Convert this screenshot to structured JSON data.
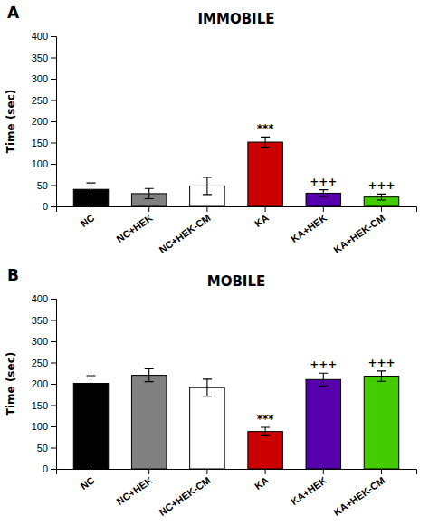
{
  "chart_data": [
    {
      "type": "bar",
      "title": "IMMOBILE",
      "label": "A",
      "categories": [
        "NC",
        "NC+HEK",
        "NC+HEK-CM",
        "KA",
        "KA+HEK",
        "KA+HEK-CM"
      ],
      "values": [
        40,
        30,
        48,
        151,
        31,
        22
      ],
      "errors": [
        15,
        12,
        20,
        12,
        8,
        7
      ],
      "colors": [
        "#000000",
        "#808080",
        "#ffffff",
        "#cc0000",
        "#5500aa",
        "#44cc00"
      ],
      "annotations": [
        null,
        null,
        null,
        "***",
        "+++",
        "+++"
      ],
      "ylim": [
        0,
        400
      ],
      "yticks": [
        0,
        50,
        100,
        150,
        200,
        250,
        300,
        350,
        400
      ],
      "ylabel": "Time (sec)",
      "grid": false
    },
    {
      "type": "bar",
      "title": "MOBILE",
      "label": "B",
      "categories": [
        "NC",
        "NC+HEK",
        "NC+HEK-CM",
        "KA",
        "KA+HEK",
        "KA+HEK-CM"
      ],
      "values": [
        201,
        220,
        191,
        88,
        210,
        218
      ],
      "errors": [
        18,
        15,
        20,
        10,
        15,
        12
      ],
      "colors": [
        "#000000",
        "#808080",
        "#ffffff",
        "#cc0000",
        "#5500aa",
        "#44cc00"
      ],
      "annotations": [
        null,
        null,
        null,
        "***",
        "+++",
        "+++"
      ],
      "ylim": [
        0,
        400
      ],
      "yticks": [
        0,
        50,
        100,
        150,
        200,
        250,
        300,
        350,
        400
      ],
      "ylabel": "Time (sec)",
      "grid": false
    }
  ]
}
